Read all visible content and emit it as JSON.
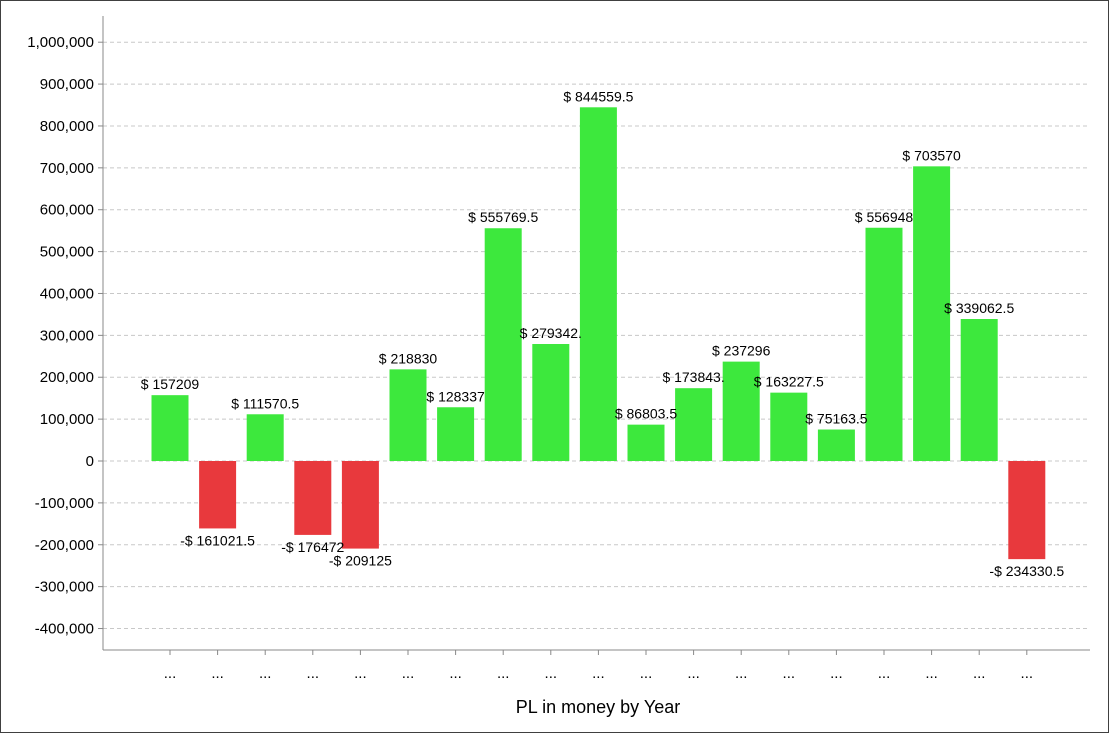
{
  "chart_data": {
    "type": "bar",
    "xlabel": "PL in money by Year",
    "ylabel": "",
    "ylim": [
      -450000,
      1080000
    ],
    "yticks": [
      -400000,
      -300000,
      -200000,
      -100000,
      0,
      100000,
      200000,
      300000,
      400000,
      500000,
      600000,
      700000,
      800000,
      900000,
      1000000
    ],
    "ytick_labels": [
      "-400,000",
      "-300,000",
      "-200,000",
      "-100,000",
      "0",
      "100,000",
      "200,000",
      "300,000",
      "400,000",
      "500,000",
      "600,000",
      "700,000",
      "800,000",
      "900,000",
      "1,000,000"
    ],
    "categories": [
      "...",
      "...",
      "...",
      "...",
      "...",
      "...",
      "...",
      "...",
      "...",
      "...",
      "...",
      "...",
      "...",
      "...",
      "...",
      "...",
      "...",
      "...",
      "..."
    ],
    "values": [
      157209,
      -161021.5,
      111570.5,
      -176472,
      -209125,
      218830,
      128337,
      555769.5,
      279342,
      844559.5,
      86803.5,
      173843,
      237296,
      163227.5,
      75163.5,
      556948,
      703570,
      339062.5,
      -234330.5
    ],
    "data_labels": [
      "$ 157209",
      "-$ 161021.5",
      "$ 111570.5",
      "-$ 176472",
      "-$ 209125",
      "$ 218830",
      "$ 128337",
      "$ 555769.5",
      "$ 279342.",
      "$ 844559.5",
      "$ 86803.5",
      "$ 173843.",
      "$ 237296",
      "$ 163227.5",
      "$ 75163.5",
      "$ 556948",
      "$ 703570",
      "$ 339062.5",
      "-$ 234330.5"
    ],
    "grid": "horizontal dashed",
    "colors": {
      "positive": "#3de83d",
      "negative": "#e8393d",
      "grid": "#c8c8c8",
      "axis": "#888888"
    }
  }
}
